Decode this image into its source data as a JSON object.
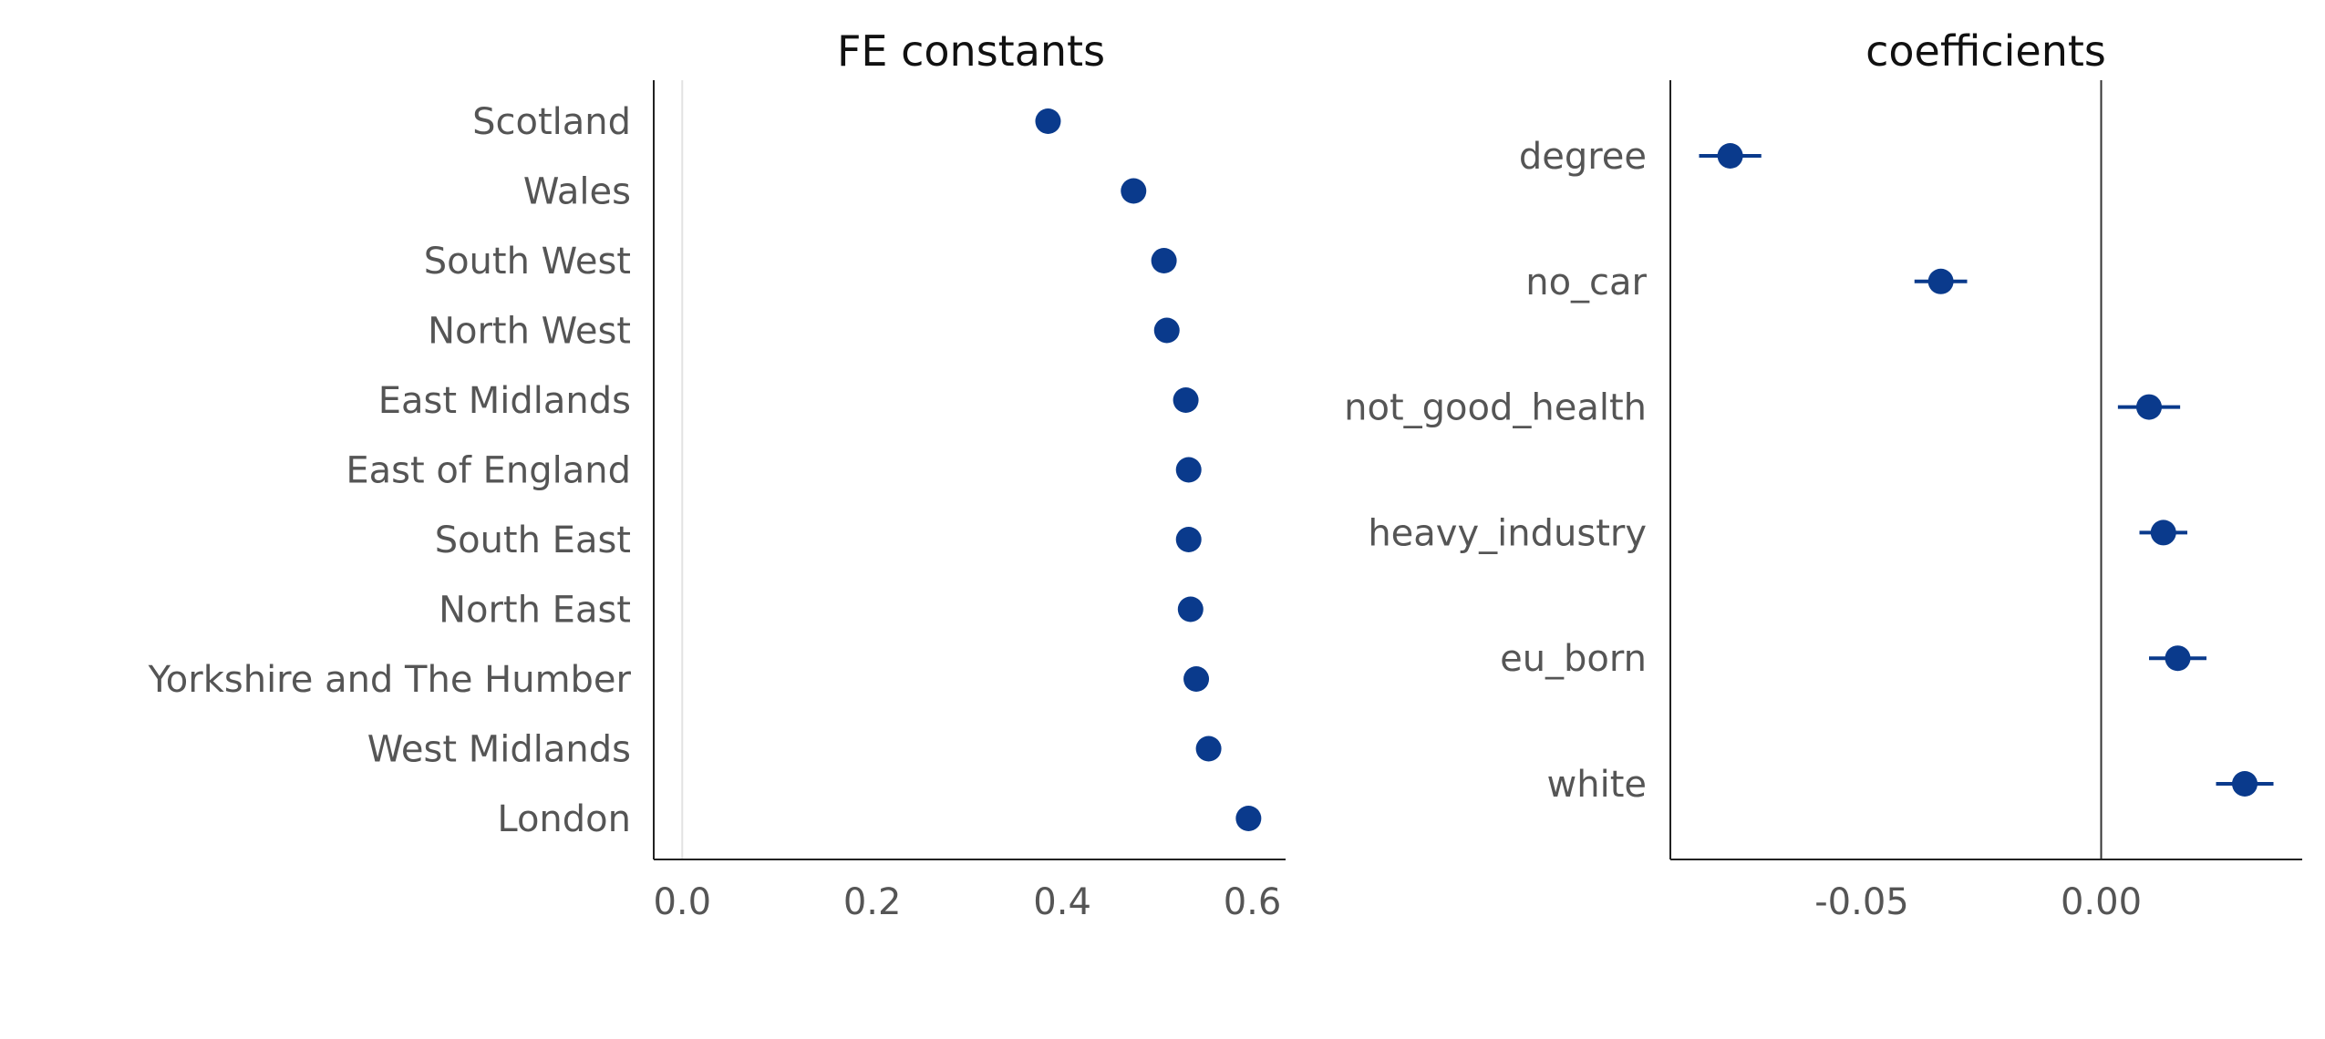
{
  "chart_data": [
    {
      "type": "scatter",
      "title": "FE constants",
      "xlabel": "",
      "ylabel": "",
      "categories": [
        "Scotland",
        "Wales",
        "South West",
        "North West",
        "East Midlands",
        "East of England",
        "South East",
        "North East",
        "Yorkshire and The Humber",
        "West Midlands",
        "London"
      ],
      "values": [
        0.385,
        0.475,
        0.507,
        0.51,
        0.53,
        0.533,
        0.533,
        0.535,
        0.541,
        0.554,
        0.596
      ],
      "xlim": [
        -0.03,
        0.635
      ],
      "xticks": [
        0.0,
        0.2,
        0.4,
        0.6
      ],
      "xtick_labels": [
        "0.0",
        "0.2",
        "0.4",
        "0.6"
      ],
      "reference_line": 0.0,
      "grid": false,
      "color": "#0A3A8C"
    },
    {
      "type": "scatter",
      "title": "coefficients",
      "xlabel": "",
      "ylabel": "",
      "categories": [
        "degree",
        "no_car",
        "not_good_health",
        "heavy_industry",
        "eu_born",
        "white"
      ],
      "values": [
        -0.0775,
        -0.0335,
        0.01,
        0.013,
        0.016,
        0.03
      ],
      "error_low": [
        -0.084,
        -0.039,
        0.0035,
        0.008,
        0.01,
        0.024
      ],
      "error_high": [
        -0.071,
        -0.028,
        0.0165,
        0.018,
        0.022,
        0.036
      ],
      "xlim": [
        -0.09,
        0.042
      ],
      "xticks": [
        -0.05,
        0.0
      ],
      "xtick_labels": [
        "-0.05",
        "0.00"
      ],
      "reference_line": 0.0,
      "grid": false,
      "color": "#0A3A8C"
    }
  ]
}
